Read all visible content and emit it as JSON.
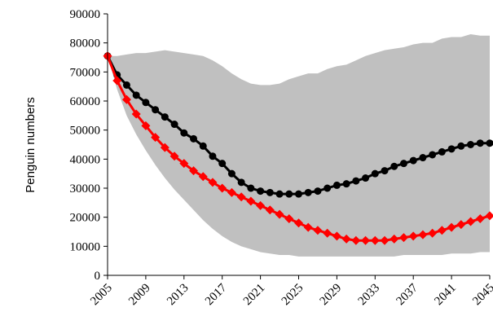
{
  "chart_data": {
    "type": "line",
    "y_label": "Penguin numbers",
    "x": [
      2005,
      2006,
      2007,
      2008,
      2009,
      2010,
      2011,
      2012,
      2013,
      2014,
      2015,
      2016,
      2017,
      2018,
      2019,
      2020,
      2021,
      2022,
      2023,
      2024,
      2025,
      2026,
      2027,
      2028,
      2029,
      2030,
      2031,
      2032,
      2033,
      2034,
      2035,
      2036,
      2037,
      2038,
      2039,
      2040,
      2041,
      2042,
      2043,
      2044,
      2045
    ],
    "xlim": [
      2005,
      2045
    ],
    "xticks": [
      2005,
      2009,
      2013,
      2017,
      2021,
      2025,
      2029,
      2033,
      2037,
      2041,
      2045
    ],
    "ylim": [
      0,
      90000
    ],
    "yticks": [
      0,
      10000,
      20000,
      30000,
      40000,
      50000,
      60000,
      70000,
      80000,
      90000
    ],
    "band": {
      "color": "#c0c0c0",
      "upper": [
        75500,
        75500,
        76000,
        76500,
        76500,
        77000,
        77500,
        77000,
        76500,
        76000,
        75500,
        74000,
        72000,
        69500,
        67500,
        66000,
        65500,
        65500,
        66000,
        67500,
        68500,
        69500,
        69500,
        71000,
        72000,
        72500,
        74000,
        75500,
        76500,
        77500,
        78000,
        78500,
        79500,
        80000,
        80000,
        81500,
        82000,
        82000,
        83000,
        82500,
        82500
      ],
      "lower": [
        75500,
        64000,
        55000,
        48500,
        43000,
        38000,
        33500,
        29500,
        26000,
        22500,
        19000,
        16000,
        13500,
        11500,
        10000,
        9000,
        8000,
        7500,
        7000,
        7000,
        6500,
        6500,
        6500,
        6500,
        6500,
        6500,
        6500,
        6500,
        6500,
        6500,
        6500,
        7000,
        7000,
        7000,
        7000,
        7000,
        7500,
        7500,
        7500,
        8000,
        8000
      ]
    },
    "series": [
      {
        "color": "#000000",
        "marker": "circle",
        "values": [
          75500,
          69000,
          65500,
          62000,
          59500,
          57000,
          54500,
          52000,
          49000,
          47000,
          44500,
          41000,
          38500,
          35000,
          32000,
          30000,
          29000,
          28500,
          28000,
          28000,
          28000,
          28500,
          29000,
          30000,
          31000,
          31500,
          32500,
          33500,
          35000,
          36000,
          37500,
          38500,
          39500,
          40500,
          41500,
          42500,
          43500,
          44500,
          45000,
          45500,
          45500
        ]
      },
      {
        "color": "#ff0000",
        "marker": "diamond",
        "values": [
          75500,
          67000,
          60500,
          55500,
          51500,
          47500,
          44000,
          41000,
          38500,
          36000,
          34000,
          32000,
          30000,
          28500,
          27000,
          25500,
          24000,
          22500,
          21000,
          19500,
          18000,
          16500,
          15500,
          14500,
          13500,
          12500,
          12000,
          12000,
          12000,
          12000,
          12500,
          13000,
          13500,
          14000,
          14500,
          15500,
          16500,
          17500,
          18500,
          19500,
          20500
        ]
      }
    ]
  }
}
